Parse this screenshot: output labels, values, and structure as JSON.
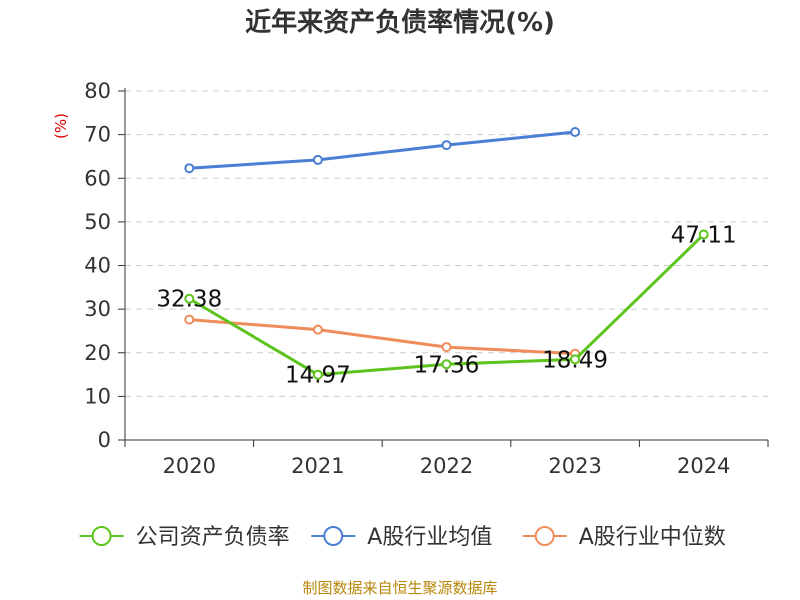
{
  "chart_data": {
    "type": "line",
    "title": "近年来资产负债率情况(%)",
    "ylabel": "(%)",
    "x": [
      "2020",
      "2021",
      "2022",
      "2023",
      "2024"
    ],
    "ylim": [
      0,
      80
    ],
    "yticks": [
      0,
      10,
      20,
      30,
      40,
      50,
      60,
      70,
      80
    ],
    "grid": true,
    "legend_position": "bottom",
    "series": [
      {
        "name": "公司资产负债率",
        "color": "#5cc41c",
        "values": [
          32.38,
          14.97,
          17.36,
          18.49,
          47.11
        ],
        "labels": [
          "32.38",
          "14.97",
          "17.36",
          "18.49",
          "47.11"
        ]
      },
      {
        "name": "A股行业均值",
        "color": "#4a7fd4",
        "values": [
          62.3,
          64.2,
          67.6,
          70.6,
          null
        ]
      },
      {
        "name": "A股行业中位数",
        "color": "#f08c5a",
        "values": [
          27.6,
          25.3,
          21.3,
          19.8,
          null
        ]
      }
    ]
  },
  "source": "制图数据来自恒生聚源数据库"
}
